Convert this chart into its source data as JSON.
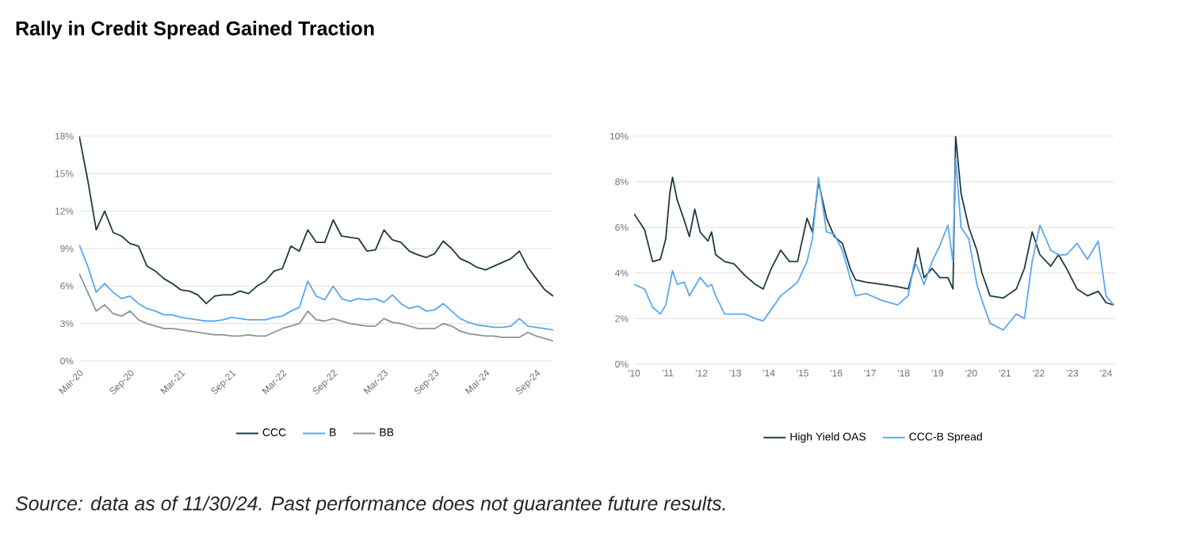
{
  "chart_data": [
    {
      "type": "line",
      "title": "Rally in Credit Spread Gained Traction",
      "annotations": [
        "Source: data as of 11/30/24. Past performance does not guarantee future results."
      ],
      "x": [
        "2020-03",
        "2020-04",
        "2020-05",
        "2020-06",
        "2020-07",
        "2020-08",
        "2020-09",
        "2020-10",
        "2020-11",
        "2020-12",
        "2021-01",
        "2021-02",
        "2021-03",
        "2021-04",
        "2021-05",
        "2021-06",
        "2021-07",
        "2021-08",
        "2021-09",
        "2021-10",
        "2021-11",
        "2021-12",
        "2022-01",
        "2022-02",
        "2022-03",
        "2022-04",
        "2022-05",
        "2022-06",
        "2022-07",
        "2022-08",
        "2022-09",
        "2022-10",
        "2022-11",
        "2022-12",
        "2023-01",
        "2023-02",
        "2023-03",
        "2023-04",
        "2023-05",
        "2023-06",
        "2023-07",
        "2023-08",
        "2023-09",
        "2023-10",
        "2023-11",
        "2023-12",
        "2024-01",
        "2024-02",
        "2024-03",
        "2024-04",
        "2024-05",
        "2024-06",
        "2024-07",
        "2024-08",
        "2024-09",
        "2024-10",
        "2024-11"
      ],
      "series": [
        {
          "name": "CCC",
          "color": "#1f3a44",
          "values": [
            18,
            14.5,
            10.5,
            12,
            10.3,
            10,
            9.4,
            9.2,
            7.6,
            7.2,
            6.6,
            6.2,
            5.7,
            5.6,
            5.3,
            4.6,
            5.2,
            5.3,
            5.3,
            5.6,
            5.4,
            6.0,
            6.4,
            7.2,
            7.4,
            9.2,
            8.8,
            10.5,
            9.5,
            9.5,
            11.3,
            10.0,
            9.9,
            9.8,
            8.8,
            8.9,
            10.5,
            9.7,
            9.5,
            8.8,
            8.5,
            8.3,
            8.6,
            9.6,
            9.0,
            8.2,
            7.9,
            7.5,
            7.3,
            7.6,
            7.9,
            8.2,
            8.8,
            7.5,
            6.6,
            5.7,
            5.2
          ]
        },
        {
          "name": "B",
          "color": "#5aa7f0",
          "values": [
            9.3,
            7.6,
            5.5,
            6.2,
            5.5,
            5.0,
            5.2,
            4.6,
            4.2,
            4.0,
            3.7,
            3.7,
            3.5,
            3.4,
            3.3,
            3.2,
            3.2,
            3.3,
            3.5,
            3.4,
            3.3,
            3.3,
            3.3,
            3.5,
            3.6,
            4.0,
            4.3,
            6.4,
            5.2,
            4.9,
            6.0,
            5.0,
            4.8,
            5.0,
            4.9,
            5.0,
            4.7,
            5.3,
            4.6,
            4.2,
            4.4,
            4.0,
            4.1,
            4.6,
            4.0,
            3.4,
            3.1,
            2.9,
            2.8,
            2.7,
            2.7,
            2.8,
            3.4,
            2.8,
            2.7,
            2.6,
            2.5
          ]
        },
        {
          "name": "BB",
          "color": "#8a9494",
          "values": [
            7.0,
            5.5,
            4.0,
            4.5,
            3.8,
            3.6,
            4.0,
            3.3,
            3.0,
            2.8,
            2.6,
            2.6,
            2.5,
            2.4,
            2.3,
            2.2,
            2.1,
            2.1,
            2.0,
            2.0,
            2.1,
            2.0,
            2.0,
            2.3,
            2.6,
            2.8,
            3.0,
            4.0,
            3.3,
            3.2,
            3.4,
            3.2,
            3.0,
            2.9,
            2.8,
            2.8,
            3.4,
            3.1,
            3.0,
            2.8,
            2.6,
            2.6,
            2.6,
            3.0,
            2.8,
            2.4,
            2.2,
            2.1,
            2.0,
            2.0,
            1.9,
            1.9,
            1.9,
            2.3,
            2.0,
            1.8,
            1.6
          ]
        }
      ],
      "xlim": [
        "2020-03",
        "2024-11"
      ],
      "xticks": [
        {
          "value": "2020-03",
          "label": "Mar-20"
        },
        {
          "value": "2020-09",
          "label": "Sep-20"
        },
        {
          "value": "2021-03",
          "label": "Mar-21"
        },
        {
          "value": "2021-09",
          "label": "Sep-21"
        },
        {
          "value": "2022-03",
          "label": "Mar-22"
        },
        {
          "value": "2022-09",
          "label": "Sep-22"
        },
        {
          "value": "2023-03",
          "label": "Mar-23"
        },
        {
          "value": "2023-09",
          "label": "Sep-23"
        },
        {
          "value": "2024-03",
          "label": "Mar-24"
        },
        {
          "value": "2024-09",
          "label": "Sep-24"
        }
      ],
      "ylim": [
        0,
        18
      ],
      "yticks": [
        {
          "value": 0,
          "label": "0%"
        },
        {
          "value": 3,
          "label": "3%"
        },
        {
          "value": 6,
          "label": "6%"
        },
        {
          "value": 9,
          "label": "9%"
        },
        {
          "value": 12,
          "label": "12%"
        },
        {
          "value": 15,
          "label": "15%"
        },
        {
          "value": 18,
          "label": "18%"
        }
      ],
      "grid": "y",
      "legend": "bottom"
    },
    {
      "type": "line",
      "x": [
        2010.0,
        2010.31,
        2010.55,
        2010.78,
        2010.94,
        2011.06,
        2011.14,
        2011.28,
        2011.49,
        2011.64,
        2011.8,
        2011.96,
        2012.19,
        2012.3,
        2012.42,
        2012.69,
        2012.97,
        2013.28,
        2013.6,
        2013.83,
        2014.07,
        2014.35,
        2014.61,
        2014.85,
        2015.13,
        2015.29,
        2015.47,
        2015.71,
        2015.94,
        2016.18,
        2016.41,
        2016.57,
        2016.88,
        2017.35,
        2017.82,
        2018.13,
        2018.32,
        2018.42,
        2018.6,
        2018.84,
        2019.07,
        2019.31,
        2019.46,
        2019.54,
        2019.7,
        2019.93,
        2020.17,
        2020.32,
        2020.56,
        2020.95,
        2021.34,
        2021.58,
        2021.81,
        2022.04,
        2022.36,
        2022.59,
        2022.83,
        2023.14,
        2023.45,
        2023.77,
        2024.0,
        2024.23
      ],
      "series": [
        {
          "name": "High Yield OAS",
          "color": "#1f3a44",
          "values": [
            6.6,
            5.9,
            4.5,
            4.6,
            5.5,
            7.5,
            8.2,
            7.2,
            6.3,
            5.6,
            6.8,
            5.8,
            5.4,
            5.8,
            4.8,
            4.5,
            4.4,
            3.9,
            3.5,
            3.3,
            4.2,
            5.0,
            4.5,
            4.5,
            6.4,
            5.8,
            8.0,
            6.4,
            5.6,
            5.3,
            4.2,
            3.7,
            3.6,
            3.5,
            3.4,
            3.3,
            4.3,
            5.1,
            3.8,
            4.2,
            3.8,
            3.8,
            3.3,
            10.0,
            7.5,
            6.0,
            5.0,
            4.0,
            3.0,
            2.9,
            3.3,
            4.2,
            5.8,
            4.8,
            4.3,
            4.8,
            4.2,
            3.3,
            3.0,
            3.2,
            2.7,
            2.6
          ]
        },
        {
          "name": "CCC-B Spread",
          "color": "#5aa7f0",
          "values": [
            3.5,
            3.3,
            2.5,
            2.2,
            2.6,
            3.5,
            4.1,
            3.5,
            3.6,
            3.0,
            3.4,
            3.8,
            3.4,
            3.5,
            3.0,
            2.2,
            2.2,
            2.2,
            2.0,
            1.9,
            2.4,
            3.0,
            3.3,
            3.6,
            4.5,
            5.5,
            8.2,
            5.8,
            5.7,
            5.0,
            3.8,
            3.0,
            3.1,
            2.8,
            2.6,
            3.0,
            4.5,
            4.2,
            3.5,
            4.5,
            5.2,
            6.1,
            4.5,
            9.0,
            6.0,
            5.5,
            3.5,
            2.8,
            1.8,
            1.5,
            2.2,
            2.0,
            4.5,
            6.1,
            5.0,
            4.8,
            4.8,
            5.3,
            4.6,
            5.4,
            3.0,
            2.6
          ]
        }
      ],
      "xlim": [
        2010,
        2024.25
      ],
      "xticks": [
        {
          "value": 2010,
          "label": "'10"
        },
        {
          "value": 2011,
          "label": "'11"
        },
        {
          "value": 2012,
          "label": "'12"
        },
        {
          "value": 2013,
          "label": "'13"
        },
        {
          "value": 2014,
          "label": "'14"
        },
        {
          "value": 2015,
          "label": "'15"
        },
        {
          "value": 2016,
          "label": "'16"
        },
        {
          "value": 2017,
          "label": "'17"
        },
        {
          "value": 2018,
          "label": "'18"
        },
        {
          "value": 2019,
          "label": "'19"
        },
        {
          "value": 2020,
          "label": "'20"
        },
        {
          "value": 2021,
          "label": "'21"
        },
        {
          "value": 2022,
          "label": "'22"
        },
        {
          "value": 2023,
          "label": "'23"
        },
        {
          "value": 2024,
          "label": "'24"
        }
      ],
      "ylim": [
        0,
        10
      ],
      "yticks": [
        {
          "value": 0,
          "label": "0%"
        },
        {
          "value": 2,
          "label": "2%"
        },
        {
          "value": 4,
          "label": "4%"
        },
        {
          "value": 6,
          "label": "6%"
        },
        {
          "value": 8,
          "label": "8%"
        },
        {
          "value": 10,
          "label": "10%"
        }
      ],
      "grid": "y",
      "legend": "bottom"
    }
  ]
}
